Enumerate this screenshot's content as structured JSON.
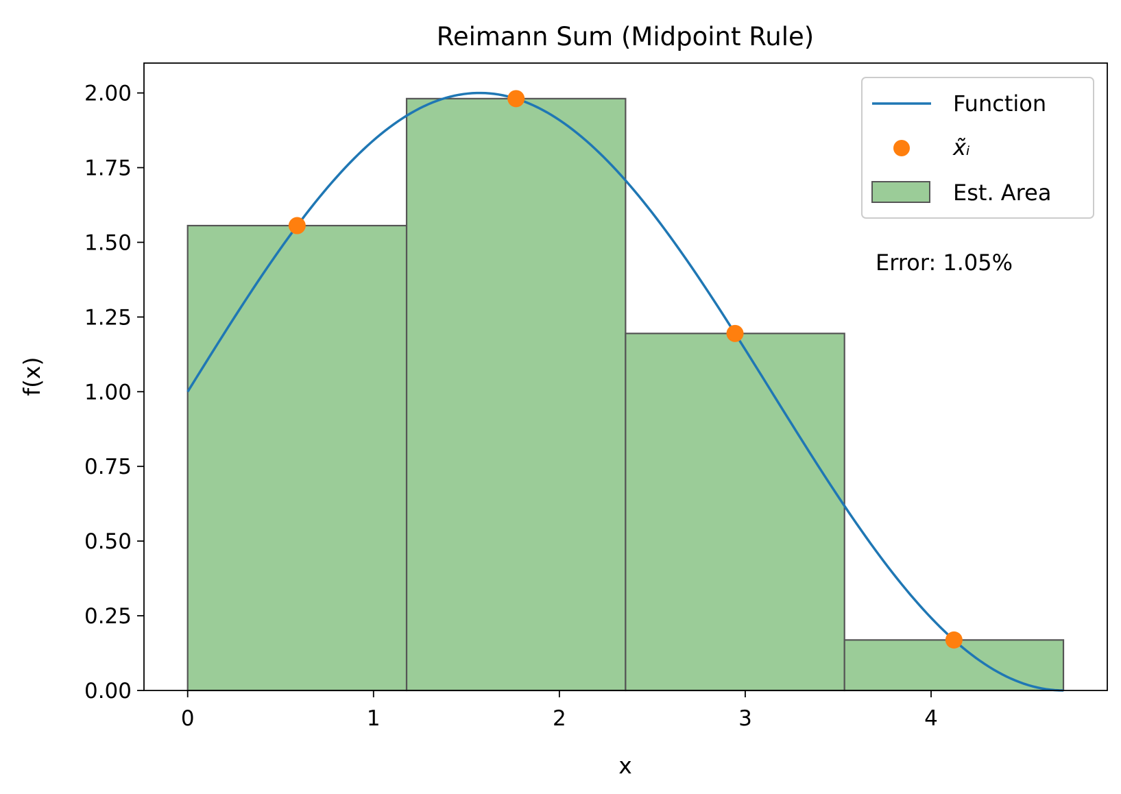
{
  "chart_data": {
    "type": "bar",
    "title": "Reimann Sum (Midpoint Rule)",
    "xlabel": "x",
    "ylabel": "f(x)",
    "xlim": [
      -0.235,
      4.948
    ],
    "ylim": [
      0,
      2.1
    ],
    "x_ticks": [
      "0",
      "1",
      "2",
      "3",
      "4"
    ],
    "y_ticks": [
      "0.00",
      "0.25",
      "0.50",
      "0.75",
      "1.00",
      "1.25",
      "1.50",
      "1.75",
      "2.00"
    ],
    "grid": false,
    "legend_position": "top-right",
    "legend": [
      {
        "label": "Function",
        "kind": "line"
      },
      {
        "label": "x̃ᵢ",
        "kind": "marker"
      },
      {
        "label": "Est. Area",
        "kind": "patch"
      }
    ],
    "function": {
      "name": "Function",
      "expression": "1 + sin(x)",
      "domain": [
        0,
        4.712
      ],
      "color": "#1f77b4"
    },
    "bars": {
      "name": "Est. Area",
      "left_edges": [
        0,
        1.178,
        2.356,
        3.534
      ],
      "width": 1.178,
      "heights": [
        1.556,
        1.981,
        1.195,
        0.169
      ],
      "color": "#9bcc98",
      "edge_color": "#555555"
    },
    "midpoints": {
      "name": "x̃ᵢ",
      "x": [
        0.589,
        1.767,
        2.945,
        4.123
      ],
      "y": [
        1.556,
        1.981,
        1.195,
        0.169
      ],
      "color": "#ff7f0e"
    },
    "annotation": "Error: 1.05%"
  }
}
